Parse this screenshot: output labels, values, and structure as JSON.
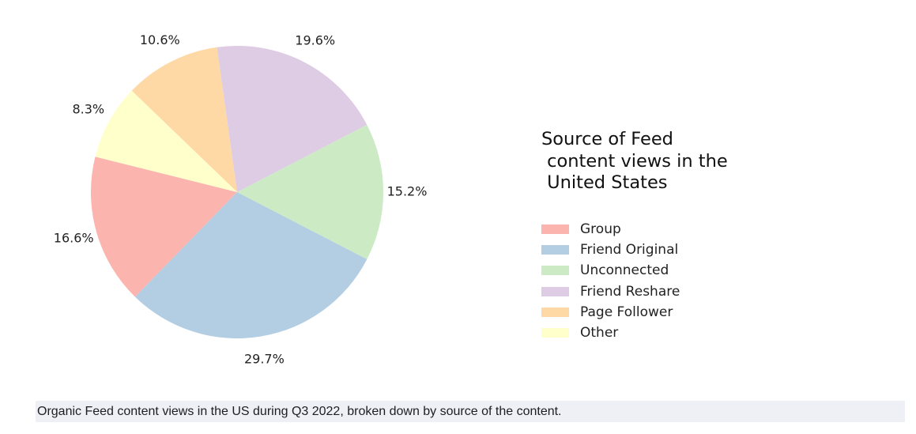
{
  "chart_data": {
    "type": "pie",
    "legend_title": "Source of Feed\n content views in the\n United States",
    "legend_placement": "right",
    "slices": [
      {
        "name": "Group",
        "value": 16.6,
        "label": "16.6%",
        "color": "#fbb4ae"
      },
      {
        "name": "Friend Original",
        "value": 29.7,
        "label": "29.7%",
        "color": "#b3cde3"
      },
      {
        "name": "Unconnected",
        "value": 15.2,
        "label": "15.2%",
        "color": "#ccebc5"
      },
      {
        "name": "Friend Reshare",
        "value": 19.6,
        "label": "19.6%",
        "color": "#decbe4"
      },
      {
        "name": "Page Follower",
        "value": 10.6,
        "label": "10.6%",
        "color": "#fed9a6"
      },
      {
        "name": "Other",
        "value": 8.3,
        "label": "8.3%",
        "color": "#ffffcc"
      }
    ],
    "start_angle_deg": 166,
    "direction": "counterclockwise"
  },
  "caption": "Organic Feed content views in the US during Q3 2022, broken down by source of the content."
}
